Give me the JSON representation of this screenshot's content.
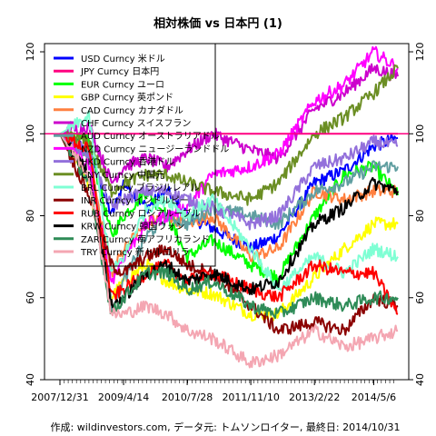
{
  "chart_data": {
    "type": "line",
    "title": "相対株価 vs 日本円 (1)",
    "caption": "作成: wildinvestors.com, データ元: トムソンロイター, 最終日: 2014/10/31",
    "x_tick_labels": [
      "2007/12/31",
      "2009/4/14",
      "2010/7/28",
      "2011/11/10",
      "2013/2/22",
      "2014/5/6"
    ],
    "x_range": [
      "2007-12-31",
      "2014-10-31"
    ],
    "ylim": [
      40,
      122
    ],
    "y_ticks": [
      40,
      60,
      80,
      100,
      120
    ],
    "reference_line": 100,
    "legend_position": "top-left",
    "series": [
      {
        "name": "USD Curncy 米ドル",
        "color": "#0000ff",
        "x": [
          "2007-12-31",
          "2008-08-01",
          "2009-01-15",
          "2009-04-14",
          "2009-10-01",
          "2010-03-01",
          "2010-07-28",
          "2011-02-01",
          "2011-11-10",
          "2012-06-01",
          "2013-02-22",
          "2013-10-01",
          "2014-05-06",
          "2014-10-31"
        ],
        "y": [
          100,
          96,
          80,
          88,
          82,
          86,
          80,
          77,
          72,
          75,
          88,
          91,
          97,
          99
        ]
      },
      {
        "name": "JPY Curncy 日本円",
        "color": "#ff0080",
        "x": [
          "2007-12-31",
          "2014-10-31"
        ],
        "y": [
          100,
          100
        ]
      },
      {
        "name": "EUR Curncy ユーロ",
        "color": "#00ff00",
        "x": [
          "2007-12-31",
          "2008-08-01",
          "2009-01-15",
          "2009-04-14",
          "2009-10-01",
          "2010-03-01",
          "2010-07-28",
          "2011-02-01",
          "2011-11-10",
          "2012-06-01",
          "2013-02-22",
          "2013-10-01",
          "2014-05-06",
          "2014-10-31"
        ],
        "y": [
          100,
          98,
          75,
          80,
          86,
          80,
          70,
          74,
          68,
          65,
          80,
          90,
          92,
          85
        ]
      },
      {
        "name": "GBP Curncy 英ポンド",
        "color": "#ffff00",
        "x": [
          "2007-12-31",
          "2008-08-01",
          "2009-01-15",
          "2009-04-14",
          "2009-10-01",
          "2010-03-01",
          "2010-07-28",
          "2011-02-01",
          "2011-11-10",
          "2012-06-01",
          "2013-02-22",
          "2013-10-01",
          "2014-05-06",
          "2014-10-31"
        ],
        "y": [
          100,
          88,
          60,
          64,
          68,
          64,
          62,
          61,
          56,
          56,
          65,
          72,
          78,
          78
        ]
      },
      {
        "name": "CAD Curncy カナダドル",
        "color": "#ff8040",
        "x": [
          "2007-12-31",
          "2008-08-01",
          "2009-01-15",
          "2009-04-14",
          "2009-10-01",
          "2010-03-01",
          "2010-07-28",
          "2011-02-01",
          "2011-11-10",
          "2012-06-01",
          "2013-02-22",
          "2013-10-01",
          "2014-05-06",
          "2014-10-31"
        ],
        "y": [
          100,
          95,
          66,
          72,
          78,
          80,
          78,
          80,
          70,
          72,
          86,
          84,
          86,
          86
        ]
      },
      {
        "name": "CHF Curncy スイスフラン",
        "color": "#cc00cc",
        "x": [
          "2007-12-31",
          "2008-08-01",
          "2009-01-15",
          "2009-04-14",
          "2009-10-01",
          "2010-03-01",
          "2010-07-28",
          "2011-02-01",
          "2011-11-10",
          "2012-06-01",
          "2013-02-22",
          "2013-10-01",
          "2014-05-06",
          "2014-10-31"
        ],
        "y": [
          100,
          102,
          88,
          92,
          94,
          92,
          96,
          100,
          96,
          94,
          106,
          110,
          116,
          114
        ]
      },
      {
        "name": "AUD Curncy オーストラリアドル",
        "color": "#5f9ea0",
        "x": [
          "2007-12-31",
          "2008-08-01",
          "2009-01-15",
          "2009-04-14",
          "2009-10-01",
          "2010-03-01",
          "2010-07-28",
          "2011-02-01",
          "2011-11-10",
          "2012-06-01",
          "2013-02-22",
          "2013-10-01",
          "2014-05-06",
          "2014-10-31"
        ],
        "y": [
          100,
          95,
          58,
          64,
          75,
          80,
          78,
          82,
          80,
          78,
          86,
          88,
          92,
          92
        ]
      },
      {
        "name": "NZD Curncy ニュージーランドドル",
        "color": "#ff00ff",
        "x": [
          "2007-12-31",
          "2008-08-01",
          "2009-01-15",
          "2009-04-14",
          "2009-10-01",
          "2010-03-01",
          "2010-07-28",
          "2011-02-01",
          "2011-11-10",
          "2012-06-01",
          "2013-02-22",
          "2013-10-01",
          "2014-05-06",
          "2014-10-31"
        ],
        "y": [
          100,
          92,
          64,
          70,
          78,
          80,
          82,
          90,
          92,
          95,
          108,
          112,
          120,
          116
        ]
      },
      {
        "name": "HKD Curncy 香港ドル",
        "color": "#9370db",
        "x": [
          "2007-12-31",
          "2008-08-01",
          "2009-01-15",
          "2009-04-14",
          "2009-10-01",
          "2010-03-01",
          "2010-07-28",
          "2011-02-01",
          "2011-11-10",
          "2012-06-01",
          "2013-02-22",
          "2013-10-01",
          "2014-05-06",
          "2014-10-31"
        ],
        "y": [
          100,
          95,
          82,
          84,
          86,
          86,
          84,
          82,
          78,
          80,
          92,
          94,
          98,
          97
        ]
      },
      {
        "name": "CNY Curncy 中国元",
        "color": "#6b8e23",
        "x": [
          "2007-12-31",
          "2008-08-01",
          "2009-01-15",
          "2009-04-14",
          "2009-10-01",
          "2010-03-01",
          "2010-07-28",
          "2011-02-01",
          "2011-11-10",
          "2012-06-01",
          "2013-02-22",
          "2013-10-01",
          "2014-05-06",
          "2014-10-31"
        ],
        "y": [
          100,
          98,
          86,
          88,
          90,
          90,
          88,
          86,
          84,
          88,
          100,
          104,
          110,
          116
        ]
      },
      {
        "name": "BRL Curncy ブラジルレアル",
        "color": "#7fffd4",
        "x": [
          "2007-12-31",
          "2008-08-01",
          "2009-01-15",
          "2009-04-14",
          "2009-10-01",
          "2010-03-01",
          "2010-07-28",
          "2011-02-01",
          "2011-11-10",
          "2012-06-01",
          "2013-02-22",
          "2013-10-01",
          "2014-05-06",
          "2014-10-31"
        ],
        "y": [
          100,
          104,
          66,
          70,
          82,
          84,
          80,
          84,
          72,
          62,
          70,
          66,
          72,
          70
        ]
      },
      {
        "name": "INR Curncy インドルピー",
        "color": "#8b0000",
        "x": [
          "2007-12-31",
          "2008-08-01",
          "2009-01-15",
          "2009-04-14",
          "2009-10-01",
          "2010-03-01",
          "2010-07-28",
          "2011-02-01",
          "2011-11-10",
          "2012-06-01",
          "2013-02-22",
          "2013-10-01",
          "2014-05-06",
          "2014-10-31"
        ],
        "y": [
          100,
          85,
          68,
          66,
          70,
          72,
          68,
          66,
          58,
          52,
          54,
          52,
          60,
          58
        ]
      },
      {
        "name": "RUB Curncy ロシアルーブル",
        "color": "#ff0000",
        "x": [
          "2007-12-31",
          "2008-08-01",
          "2009-01-15",
          "2009-04-14",
          "2009-10-01",
          "2010-03-01",
          "2010-07-28",
          "2011-02-01",
          "2011-11-10",
          "2012-06-01",
          "2013-02-22",
          "2013-10-01",
          "2014-05-06",
          "2014-10-31"
        ],
        "y": [
          100,
          96,
          60,
          62,
          66,
          68,
          64,
          66,
          62,
          60,
          68,
          66,
          66,
          56
        ]
      },
      {
        "name": "KRW Curncy 韓国ウォン",
        "color": "#000000",
        "x": [
          "2007-12-31",
          "2008-08-01",
          "2009-01-15",
          "2009-04-14",
          "2009-10-01",
          "2010-03-01",
          "2010-07-28",
          "2011-02-01",
          "2011-11-10",
          "2012-06-01",
          "2013-02-22",
          "2013-10-01",
          "2014-05-06",
          "2014-10-31"
        ],
        "y": [
          100,
          90,
          58,
          60,
          66,
          68,
          64,
          66,
          62,
          64,
          78,
          82,
          88,
          86
        ]
      },
      {
        "name": "ZAR Curncy 南アフリカランド",
        "color": "#2e8b57",
        "x": [
          "2007-12-31",
          "2008-08-01",
          "2009-01-15",
          "2009-04-14",
          "2009-10-01",
          "2010-03-01",
          "2010-07-28",
          "2011-02-01",
          "2011-11-10",
          "2012-06-01",
          "2013-02-22",
          "2013-10-01",
          "2014-05-06",
          "2014-10-31"
        ],
        "y": [
          100,
          88,
          56,
          60,
          66,
          66,
          62,
          64,
          58,
          56,
          60,
          58,
          60,
          60
        ]
      },
      {
        "name": "TRY Curncy 新トルコリラ",
        "color": "#f4a6b2",
        "x": [
          "2007-12-31",
          "2008-08-01",
          "2009-01-15",
          "2009-04-14",
          "2009-10-01",
          "2010-03-01",
          "2010-07-28",
          "2011-02-01",
          "2011-11-10",
          "2012-06-01",
          "2013-02-22",
          "2013-10-01",
          "2014-05-06",
          "2014-10-31"
        ],
        "y": [
          100,
          90,
          56,
          56,
          58,
          56,
          52,
          50,
          44,
          46,
          52,
          48,
          50,
          52
        ]
      }
    ]
  }
}
